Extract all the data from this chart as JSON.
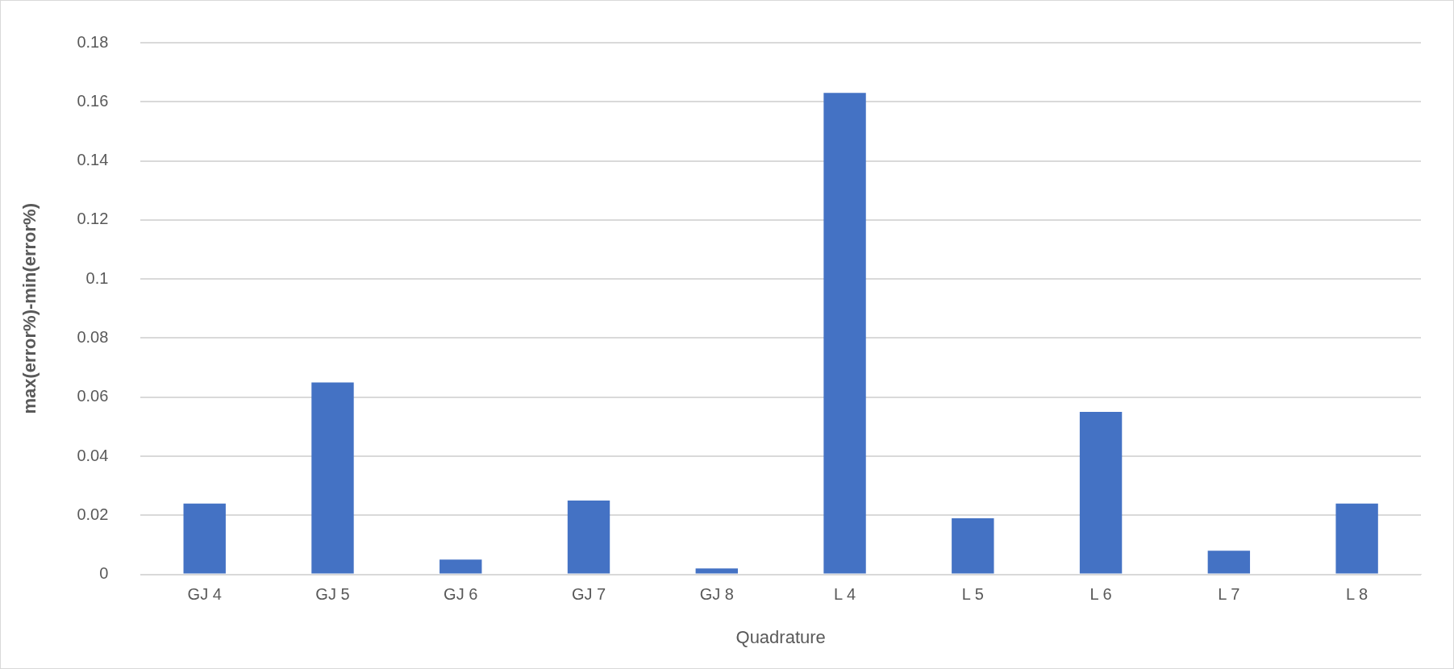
{
  "chart_data": {
    "type": "bar",
    "xlabel": "Quadrature",
    "ylabel": "max(error%)-min(error%)",
    "categories": [
      "GJ 4",
      "GJ 5",
      "GJ 6",
      "GJ 7",
      "GJ 8",
      "L 4",
      "L 5",
      "L 6",
      "L 7",
      "L 8"
    ],
    "values": [
      0.024,
      0.065,
      0.005,
      0.025,
      0.002,
      0.163,
      0.019,
      0.055,
      0.008,
      0.024
    ],
    "color": "#4472c4",
    "ylim": [
      0,
      0.18
    ],
    "yticks": [
      0,
      0.02,
      0.04,
      0.06,
      0.08,
      0.1,
      0.12,
      0.14,
      0.16,
      0.18
    ],
    "grid": "y",
    "legend": false
  }
}
